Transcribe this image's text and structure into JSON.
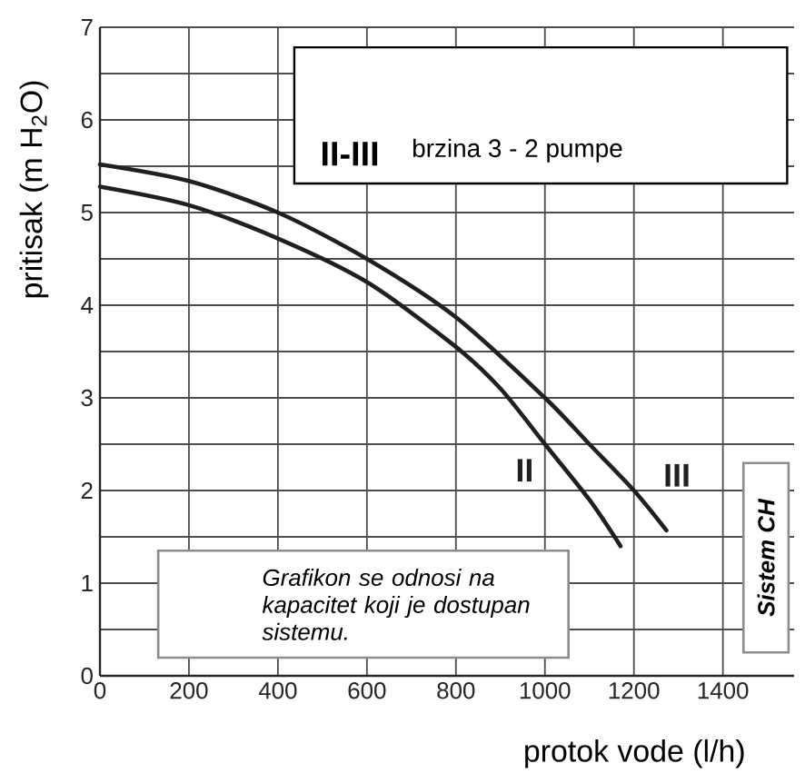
{
  "chart_data": {
    "type": "line",
    "xlabel": "protok vode (l/h)",
    "ylabel": "pritisak (m H$_{2}$O)",
    "xlim": [
      0,
      1560
    ],
    "ylim": [
      0,
      7
    ],
    "xticks": [
      0,
      200,
      400,
      600,
      800,
      1000,
      1200,
      1400
    ],
    "yticks": [
      0,
      {
        "value": 0.5,
        "label": null
      },
      1,
      {
        "value": 1.5,
        "label": null
      },
      2,
      {
        "value": 2.5,
        "label": null
      },
      3,
      {
        "value": 3.5,
        "label": null
      },
      4,
      {
        "value": 4.5,
        "label": null
      },
      5,
      {
        "value": 5.5,
        "label": null
      },
      6,
      {
        "value": 6.5,
        "label": null
      },
      7
    ],
    "grid": true,
    "marker": "none",
    "line_style": "solid",
    "annotations": [
      "II-III",
      "brzina 3 - 2 pumpe",
      "Grafikon se odnosi na kapacitet koji je dostupan sistemu.",
      "Sistem CH"
    ],
    "series": [
      {
        "name": "II",
        "color": "#231f20",
        "x": [
          0,
          200,
          400,
          600,
          800,
          900,
          1000,
          1100,
          1170
        ],
        "values": [
          5.28,
          5.08,
          4.72,
          4.25,
          3.55,
          3.1,
          2.5,
          1.9,
          1.4
        ]
      },
      {
        "name": "III",
        "color": "#231f20",
        "x": [
          0,
          200,
          400,
          600,
          800,
          1000,
          1100,
          1200,
          1273
        ],
        "values": [
          5.52,
          5.34,
          5.0,
          4.5,
          3.87,
          3.0,
          2.5,
          2.0,
          1.57
        ]
      }
    ]
  }
}
